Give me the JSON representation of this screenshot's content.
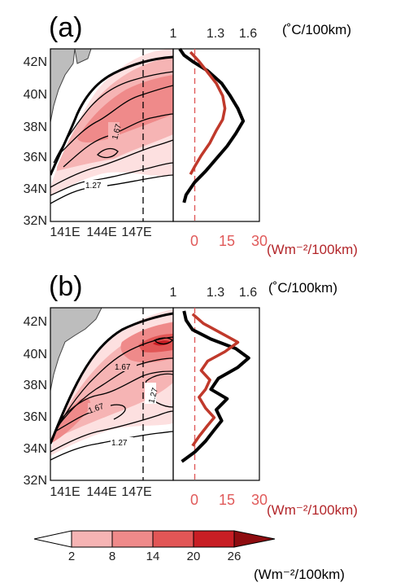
{
  "chart_data": [
    {
      "panel": "(a)",
      "type": "heatmap",
      "map": {
        "x_ticks": [
          "141E",
          "144E",
          "147E"
        ],
        "y_ticks": [
          "42N",
          "40N",
          "38N",
          "36N",
          "34N",
          "32N"
        ],
        "xlim": [
          141,
          151
        ],
        "ylim": [
          32,
          43
        ],
        "contour_labels": [
          "1.67",
          "1.27"
        ],
        "dashed_meridian": 147.5
      },
      "profile": {
        "type": "line",
        "top_ticks": [
          "1",
          "1.3",
          "1.6"
        ],
        "top_unit": "(˚C/100km)",
        "bottom_ticks": [
          "0",
          "15",
          "30"
        ],
        "bottom_unit": "(Wm⁻²/100km)",
        "top_range": [
          1.0,
          1.8
        ],
        "bottom_range": [
          -10,
          30
        ],
        "series": [
          {
            "color": "#000000",
            "lat": [
              33.2,
              33.7,
              34.5,
              35.2,
              36.0,
              36.8,
              37.6,
              38.4,
              39.2,
              40.0,
              40.8,
              41.6,
              42.2,
              42.6,
              43.0
            ],
            "values": [
              1.1,
              1.12,
              1.2,
              1.3,
              1.4,
              1.5,
              1.58,
              1.65,
              1.6,
              1.53,
              1.45,
              1.32,
              1.18,
              1.1,
              1.06
            ]
          },
          {
            "color": "#c0392b",
            "lat": [
              35.0,
              35.5,
              36.2,
              37.0,
              37.8,
              38.5,
              39.2,
              40.0,
              40.8,
              41.5,
              42.2,
              42.8
            ],
            "values": [
              -2,
              0,
              3,
              7,
              10,
              13,
              14,
              13,
              10,
              6,
              2,
              -2
            ]
          }
        ],
        "dashed_line_value": 0
      }
    },
    {
      "panel": "(b)",
      "type": "heatmap",
      "map": {
        "x_ticks": [
          "141E",
          "144E",
          "147E"
        ],
        "y_ticks": [
          "42N",
          "40N",
          "38N",
          "36N",
          "34N",
          "32N"
        ],
        "xlim": [
          141,
          151
        ],
        "ylim": [
          32,
          43
        ],
        "contour_labels": [
          "1.67",
          "1.27",
          "1.67",
          "1.27"
        ],
        "dashed_meridian": 147.5
      },
      "profile": {
        "type": "line",
        "top_ticks": [
          "1",
          "1.3",
          "1.6"
        ],
        "top_unit": "(˚C/100km)",
        "bottom_ticks": [
          "0",
          "15",
          "30"
        ],
        "bottom_unit": "(Wm⁻²/100km)",
        "top_range": [
          1.0,
          1.8
        ],
        "bottom_range": [
          -10,
          30
        ],
        "series": [
          {
            "color": "#000000",
            "lat": [
              33.2,
              33.8,
              34.5,
              35.2,
              35.8,
              36.5,
              37.2,
              37.8,
              38.5,
              39.2,
              39.8,
              40.4,
              41.0,
              41.6,
              42.2,
              42.8
            ],
            "values": [
              1.08,
              1.2,
              1.3,
              1.38,
              1.45,
              1.4,
              1.5,
              1.35,
              1.42,
              1.6,
              1.7,
              1.58,
              1.35,
              1.18,
              1.12,
              1.1
            ]
          },
          {
            "color": "#c0392b",
            "lat": [
              34.2,
              34.8,
              35.5,
              36.0,
              36.6,
              37.3,
              37.8,
              38.4,
              39.0,
              39.6,
              40.2,
              40.8,
              41.4,
              42.0,
              42.6
            ],
            "values": [
              -1,
              2,
              6,
              9,
              5,
              2,
              5,
              7,
              3,
              6,
              14,
              20,
              12,
              4,
              -1
            ]
          }
        ],
        "dashed_line_value": 0
      }
    }
  ],
  "panel_titles": [
    "(a)",
    "(b)"
  ],
  "colorbar": {
    "ticks": [
      "2",
      "8",
      "14",
      "20",
      "26"
    ],
    "colors": [
      "#fde0e0",
      "#f6b4b4",
      "#ef8a8a",
      "#e25656",
      "#c81e24",
      "#8e0c10"
    ],
    "unit": "(Wm⁻²/100km)"
  }
}
